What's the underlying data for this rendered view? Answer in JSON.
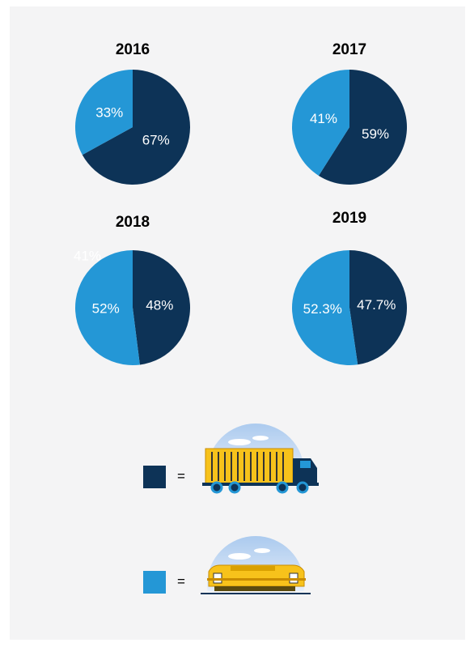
{
  "chart_data": [
    {
      "type": "pie",
      "title": "2016",
      "categories": [
        null,
        null
      ],
      "values": [
        67,
        33
      ],
      "value_labels": [
        "67%",
        "33%"
      ],
      "colors": [
        "#0d3357",
        "#2497d6"
      ]
    },
    {
      "type": "pie",
      "title": "2017",
      "categories": [
        null,
        null
      ],
      "values": [
        59,
        41
      ],
      "value_labels": [
        "59%",
        "41%"
      ],
      "colors": [
        "#0d3357",
        "#2497d6"
      ]
    },
    {
      "type": "pie",
      "title": "2018",
      "categories": [
        null,
        null
      ],
      "values": [
        48,
        52
      ],
      "value_labels": [
        "48%",
        "52%"
      ],
      "colors": [
        "#0d3357",
        "#2497d6"
      ],
      "annotation": "41%"
    },
    {
      "type": "pie",
      "title": "2019",
      "categories": [
        null,
        null
      ],
      "values": [
        47.7,
        52.3
      ],
      "value_labels": [
        "47.7%",
        "52.3%"
      ],
      "colors": [
        "#0d3357",
        "#2497d6"
      ]
    }
  ],
  "legend": {
    "items": [
      {
        "color": "#0d3357",
        "symbol": "="
      },
      {
        "color": "#2497d6",
        "symbol": "="
      }
    ]
  }
}
